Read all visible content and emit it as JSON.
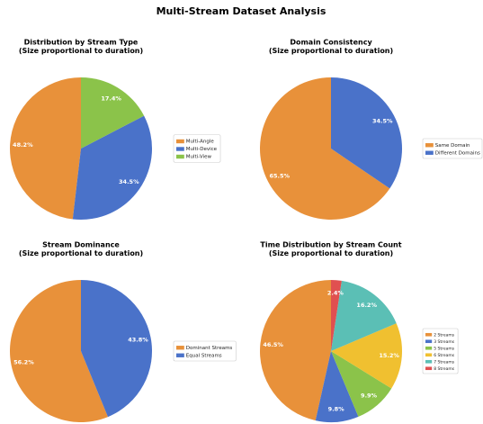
{
  "title": "Multi-Stream Dataset Analysis",
  "chart_data": [
    {
      "type": "pie",
      "title": "Distribution by Stream Type",
      "subtitle": "(Size proportional to duration)",
      "categories": [
        "Multi-Angle",
        "Multi-Device",
        "Multi-View"
      ],
      "values": [
        48.2,
        34.5,
        17.4
      ],
      "value_labels": [
        "48.2%",
        "34.5%",
        "17.4%"
      ],
      "colors": [
        "#e8913a",
        "#4a72c9",
        "#8bc34a"
      ],
      "legend": "right"
    },
    {
      "type": "pie",
      "title": "Domain Consistency",
      "subtitle": "(Size proportional to duration)",
      "categories": [
        "Same Domain",
        "Different Domains"
      ],
      "values": [
        65.5,
        34.5
      ],
      "value_labels": [
        "65.5%",
        "34.5%"
      ],
      "colors": [
        "#e8913a",
        "#4a72c9"
      ],
      "legend": "right"
    },
    {
      "type": "pie",
      "title": "Stream Dominance",
      "subtitle": "(Size proportional to duration)",
      "categories": [
        "Dominant Streams",
        "Equal Streams"
      ],
      "values": [
        56.2,
        43.8
      ],
      "value_labels": [
        "56.2%",
        "43.8%"
      ],
      "colors": [
        "#e8913a",
        "#4a72c9"
      ],
      "legend": "right"
    },
    {
      "type": "pie",
      "title": "Time Distribution by Stream Count",
      "subtitle": "(Size proportional to duration)",
      "categories": [
        "2 Streams",
        "3 Streams",
        "5 Streams",
        "6 Streams",
        "7 Streams",
        "8 Streams"
      ],
      "values": [
        46.5,
        9.8,
        9.9,
        15.2,
        16.2,
        2.4
      ],
      "value_labels": [
        "46.5%",
        "9.8%",
        "9.9%",
        "15.2%",
        "16.2%",
        "2.4%"
      ],
      "colors": [
        "#e8913a",
        "#4a72c9",
        "#8bc34a",
        "#f0c030",
        "#5bbfb5",
        "#e05050"
      ],
      "legend": "right"
    }
  ]
}
